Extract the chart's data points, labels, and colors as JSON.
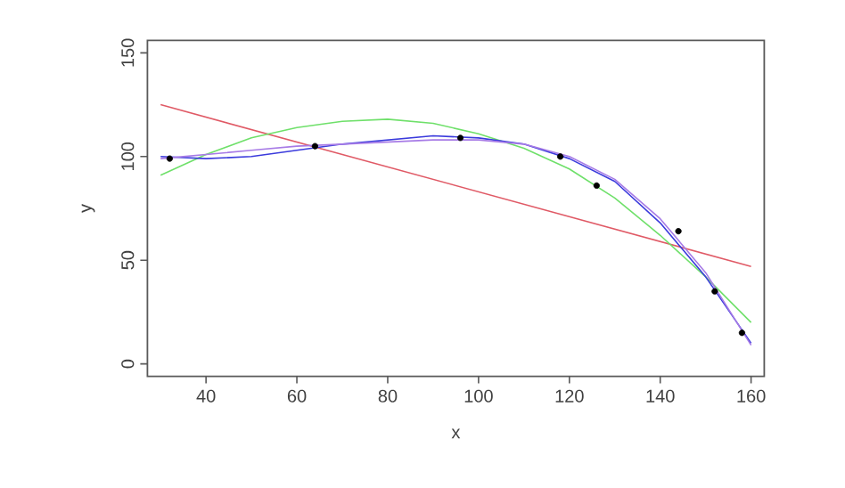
{
  "chart_data": {
    "type": "scatter",
    "xlabel": "x",
    "ylabel": "y",
    "xlim": [
      27.1,
      162.9
    ],
    "ylim": [
      -6,
      156
    ],
    "xticks": [
      40,
      60,
      80,
      100,
      120,
      140,
      160
    ],
    "yticks": [
      0,
      50,
      100,
      150
    ],
    "series": [
      {
        "marker": "circle",
        "color": "#000000",
        "x": [
          32,
          64,
          96,
          118,
          126,
          144,
          152,
          158
        ],
        "values": [
          99,
          105,
          109,
          100,
          86,
          64,
          35,
          15
        ]
      },
      {
        "type": "line",
        "marker": "none",
        "color": "#e05a66",
        "x": [
          30,
          160
        ],
        "values": [
          125,
          47
        ]
      },
      {
        "type": "line",
        "marker": "none",
        "color": "#6fe06a",
        "x": [
          30,
          40,
          50,
          60,
          70,
          80,
          90,
          100,
          110,
          120,
          130,
          140,
          150,
          160
        ],
        "values": [
          91,
          101,
          109,
          114,
          117,
          118,
          116,
          111,
          104,
          94,
          80,
          62,
          42,
          20
        ]
      },
      {
        "type": "line",
        "marker": "none",
        "color": "#3b3bdc",
        "x": [
          30,
          40,
          50,
          60,
          70,
          80,
          90,
          100,
          110,
          120,
          130,
          140,
          150,
          160
        ],
        "values": [
          100,
          99,
          100,
          103,
          106,
          108,
          110,
          109,
          106,
          99,
          88,
          68,
          42,
          10
        ]
      },
      {
        "type": "line",
        "marker": "none",
        "color": "#a77be6",
        "x": [
          30,
          40,
          50,
          60,
          70,
          80,
          90,
          100,
          110,
          120,
          130,
          140,
          150,
          160
        ],
        "values": [
          99,
          101,
          103,
          105,
          106,
          107,
          108,
          108,
          106,
          100,
          89,
          70,
          44,
          9
        ]
      }
    ]
  }
}
